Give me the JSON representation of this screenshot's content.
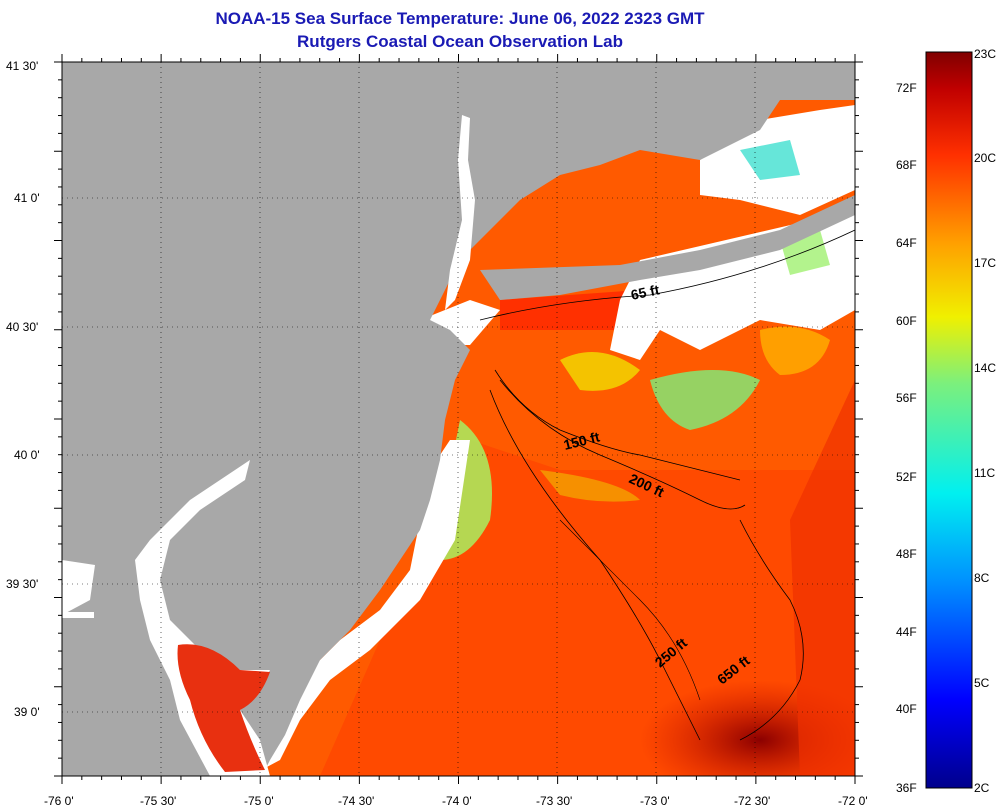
{
  "title_line1": "NOAA-15 Sea Surface Temperature:  June 06, 2022 2323 GMT",
  "title_line2": "Rutgers Coastal Ocean Observation Lab",
  "lat_labels": [
    "41 30'",
    "41 0'",
    "40 30'",
    "40 0'",
    "39 30'",
    "39 0'"
  ],
  "lon_labels": [
    "-76 0'",
    "-75 30'",
    "-75 0'",
    "-74 30'",
    "-74 0'",
    "-73 30'",
    "-73 0'",
    "-72 30'",
    "-72 0'"
  ],
  "colorbar": {
    "fahrenheit_labels": [
      "72F",
      "68F",
      "64F",
      "60F",
      "56F",
      "52F",
      "48F",
      "44F",
      "40F",
      "36F"
    ],
    "celsius_labels": [
      "23C",
      "20C",
      "17C",
      "14C",
      "11C",
      "8C",
      "5C",
      "2C"
    ],
    "range_c": [
      2,
      23
    ]
  },
  "contours": {
    "c65": "65 ft",
    "c150": "150 ft",
    "c200": "200 ft",
    "c250": "250 ft",
    "c650": "650 ft"
  },
  "colors": {
    "land": "#a8a8a8",
    "cloud": "#ffffff",
    "title": "#1a1ab4"
  }
}
